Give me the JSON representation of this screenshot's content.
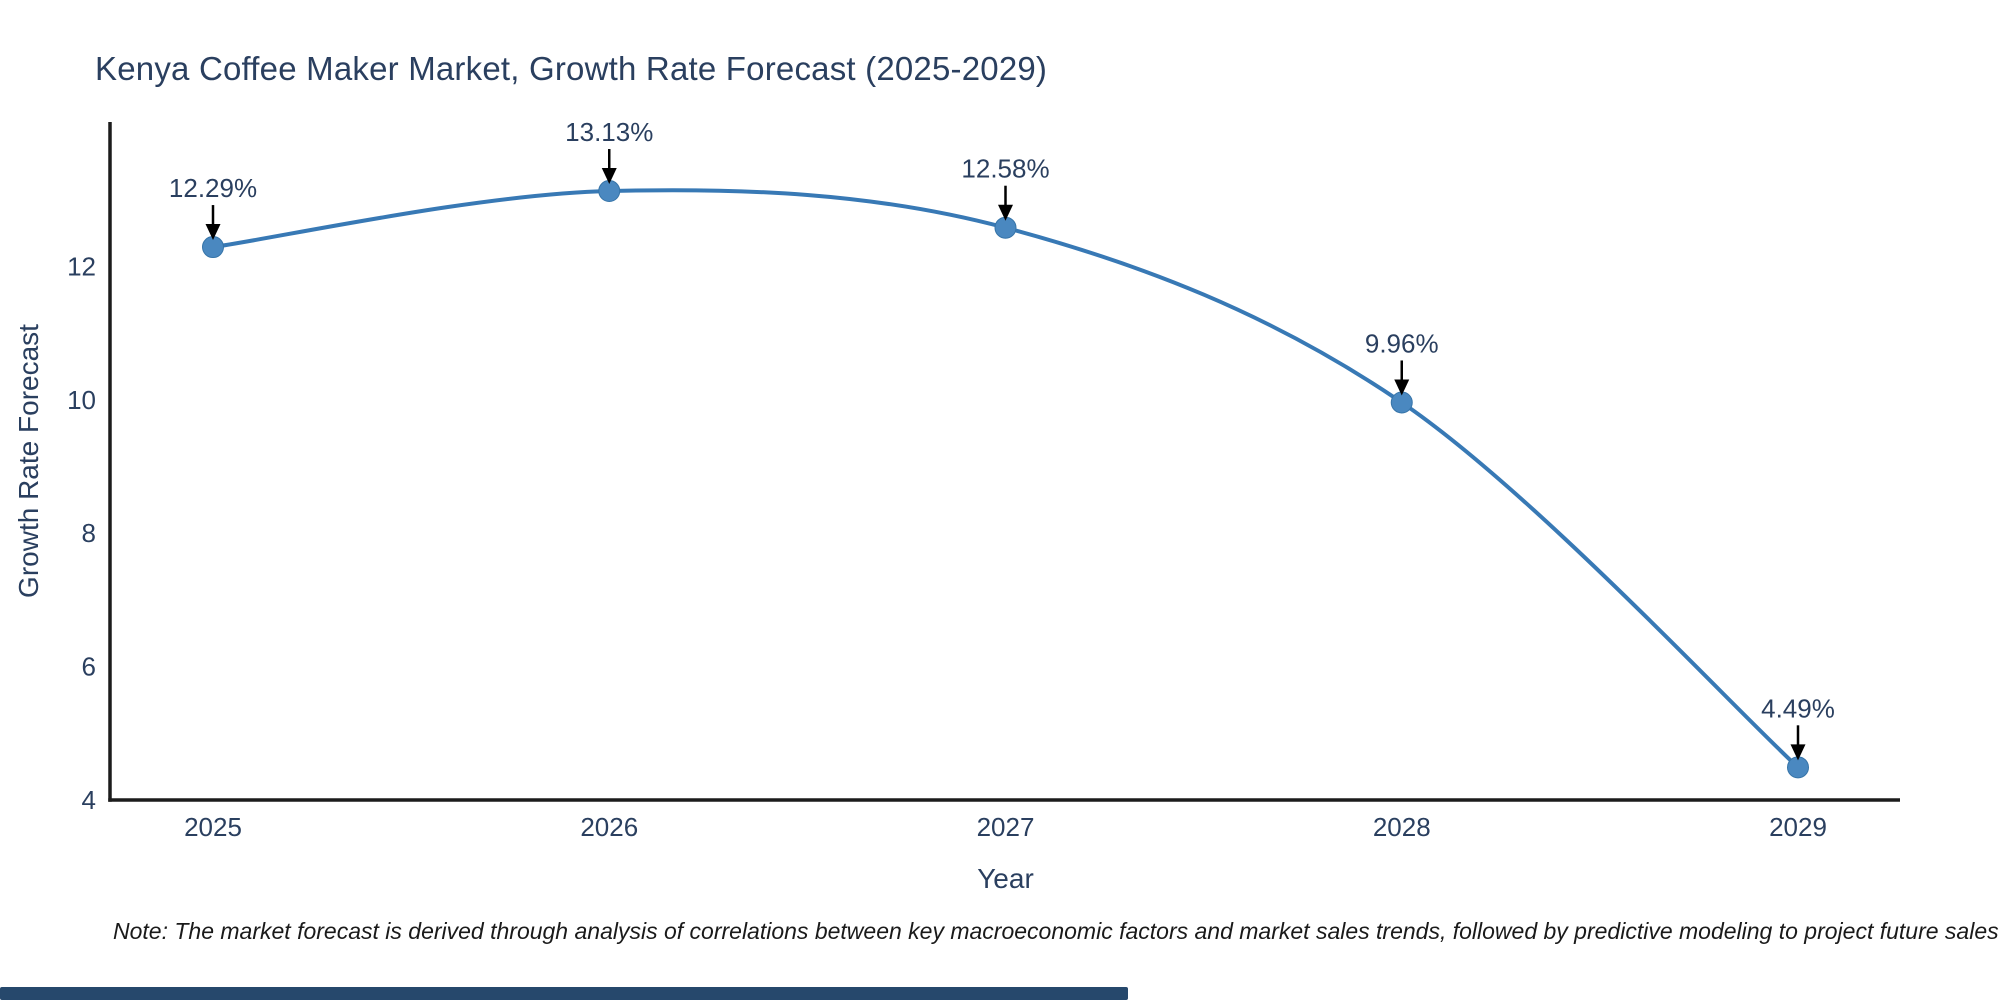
{
  "title": "Kenya Coffee Maker Market, Growth Rate Forecast (2025-2029)",
  "note": "Note: The market forecast is derived through analysis of correlations between key macroeconomic factors and market sales trends, followed by predictive modeling to project future sales",
  "chart_data": {
    "type": "line",
    "line_shape": "spline",
    "title": "Kenya Coffee Maker Market, Growth Rate Forecast (2025-2029)",
    "x": [
      "2025",
      "2026",
      "2027",
      "2028",
      "2029"
    ],
    "series": [
      {
        "name": "Growth Rate Forecast",
        "values": [
          12.29,
          13.13,
          12.58,
          9.96,
          4.49
        ]
      }
    ],
    "point_labels": [
      "12.29%",
      "13.13%",
      "12.58%",
      "9.96%",
      "4.49%"
    ],
    "xlabel": "Year",
    "ylabel": "Growth Rate Forecast",
    "yticks": [
      4,
      6,
      8,
      10,
      12
    ],
    "ylim": [
      4,
      14.15
    ],
    "grid": false,
    "legend": "none",
    "annotations": "percentage value label with black down-arrow above each data point",
    "colors": {
      "line": "#3879b5",
      "marker": "#4a88c0",
      "marker_edge": "#3674a8",
      "axis": "#1c1c1c",
      "text": "#2a3f5f",
      "arrow": "#000000",
      "note": "#1a1a1a",
      "background": "#ffffff",
      "scrollbar": "#26486c"
    }
  }
}
